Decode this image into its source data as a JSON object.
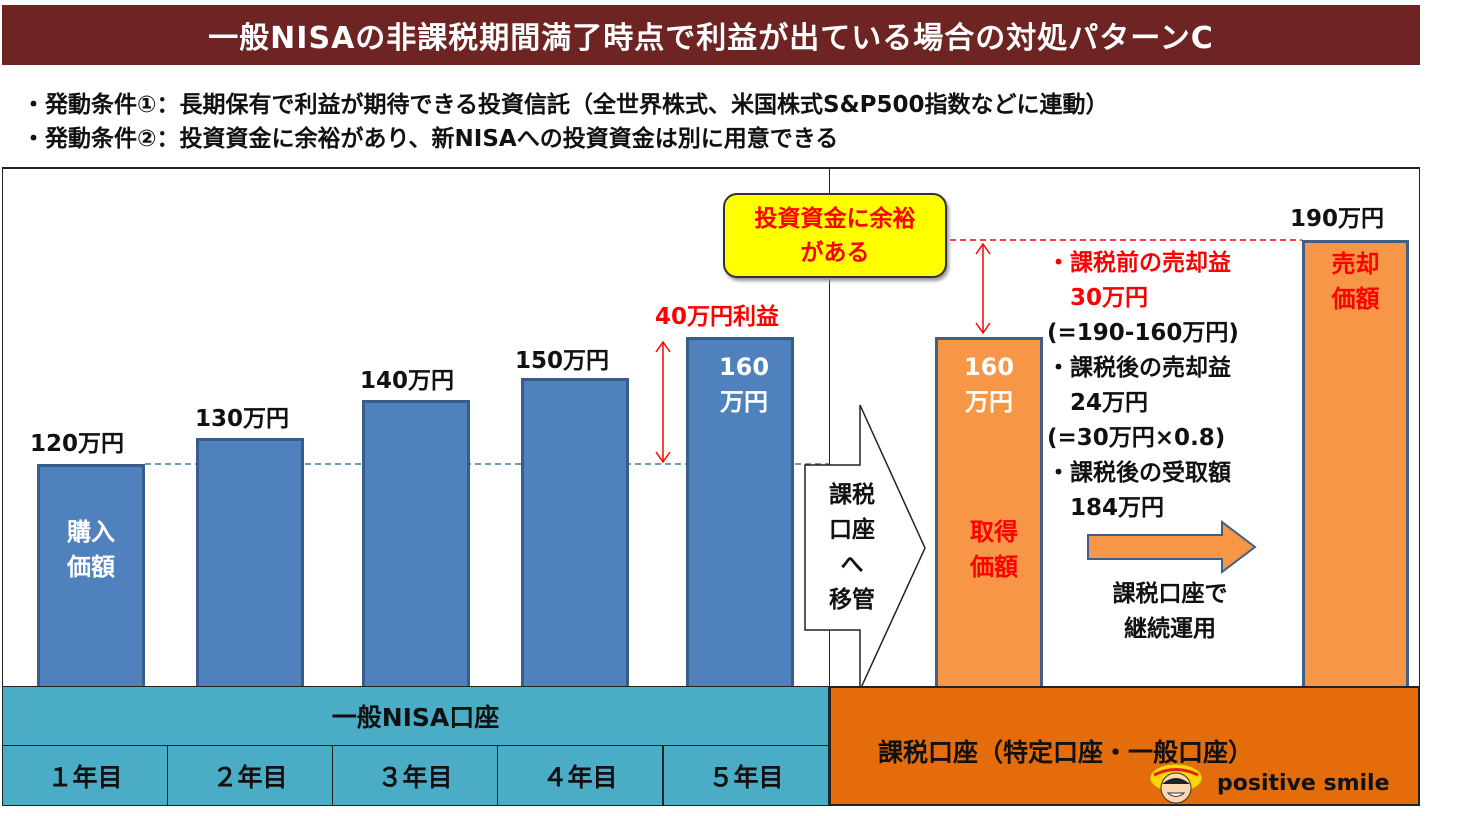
{
  "title": "一般NISAの非課税期間満了時点で利益が出ている場合の対処パターンC",
  "conditions": [
    "・発動条件①：長期保有で利益が期待できる投資信託（全世界株式、米国株式S&P500指数などに連動）",
    "・発動条件②：投資資金に余裕があり、新NISAへの投資資金は別に用意できる"
  ],
  "nisa": {
    "bars": [
      {
        "label": "120万円",
        "inner": [
          "購入",
          "価額"
        ]
      },
      {
        "label": "130万円"
      },
      {
        "label": "140万円"
      },
      {
        "label": "150万円"
      },
      {
        "label": "",
        "inner": [
          "160",
          "万円"
        ]
      }
    ],
    "profit_label": "40万円利益",
    "account_label": "一般NISA口座",
    "years": [
      "１年目",
      "２年目",
      "３年目",
      "４年目",
      "５年目"
    ]
  },
  "transfer_arrow": [
    "課税",
    "口座",
    "へ",
    "移管"
  ],
  "callout": [
    "投資資金に余裕",
    "がある"
  ],
  "taxable": {
    "acquire_bar": {
      "value": [
        "160",
        "万円"
      ],
      "inner": [
        "取得",
        "価額"
      ]
    },
    "sell_bar": {
      "label": "190万円",
      "inner": [
        "売却",
        "価額"
      ]
    },
    "notes": [
      {
        "text": "・課税前の売却益",
        "color": "#ff0000"
      },
      {
        "text": "　30万円",
        "color": "#ff0000"
      },
      {
        "text": "(=190-160万円)",
        "color": "#111111"
      },
      {
        "text": "・課税後の売却益",
        "color": "#111111"
      },
      {
        "text": "　24万円",
        "color": "#111111"
      },
      {
        "text": "(=30万円×0.8)",
        "color": "#111111"
      },
      {
        "text": "・課税後の受取額",
        "color": "#111111"
      },
      {
        "text": "　184万円",
        "color": "#111111"
      }
    ],
    "continue_label": [
      "課税口座で",
      "継続運用"
    ],
    "account_label": "課税口座（特定口座・一般口座）"
  },
  "brand": "positive smile"
}
